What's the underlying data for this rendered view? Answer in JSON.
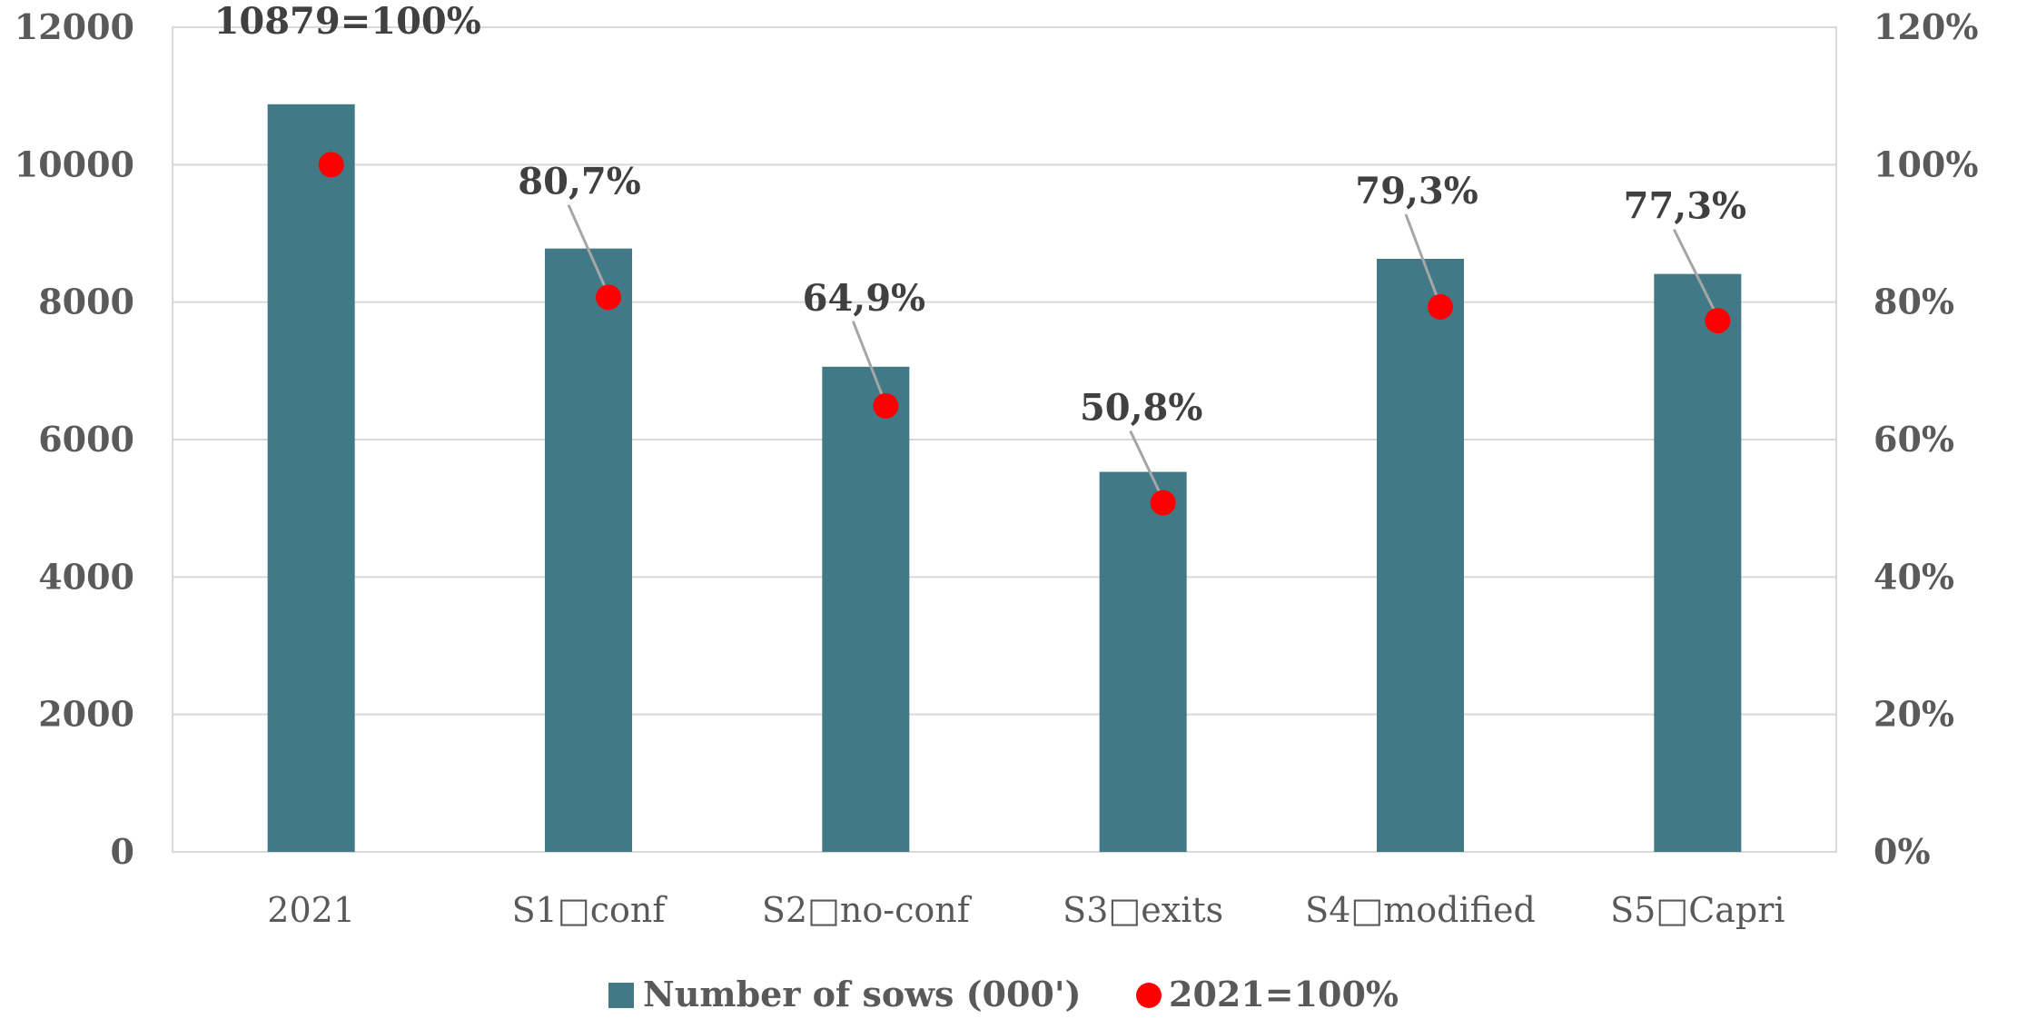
{
  "chart_data": {
    "type": "bar",
    "categories": [
      "2021",
      "S1□conf",
      "S2□no-conf",
      "S3□exits",
      "S4□modified",
      "S5□Capri"
    ],
    "series": [
      {
        "name": "Number of sows (000')",
        "type": "bar",
        "axis": "left",
        "values": [
          10879,
          8780,
          7060,
          5530,
          8630,
          8410
        ]
      },
      {
        "name": "2021=100%",
        "type": "scatter",
        "axis": "right",
        "values": [
          100,
          80.7,
          64.9,
          50.8,
          79.3,
          77.3
        ]
      }
    ],
    "data_labels": [
      "10879=100%",
      "80,7%",
      "64,9%",
      "50,8%",
      "79,3%",
      "77,3%"
    ],
    "left_axis": {
      "ylim": [
        0,
        12000
      ],
      "ticks": [
        "0",
        "2000",
        "4000",
        "6000",
        "8000",
        "10000",
        "12000"
      ]
    },
    "right_axis": {
      "ylim": [
        0,
        120
      ],
      "ticks": [
        "0%",
        "20%",
        "40%",
        "60%",
        "80%",
        "100%",
        "120%"
      ]
    },
    "grid": true,
    "legend_position": "bottom",
    "colors": {
      "bar": "#417a86",
      "marker": "#ff0000",
      "grid": "#d9d9d9",
      "leader": "#a6a6a6"
    }
  }
}
